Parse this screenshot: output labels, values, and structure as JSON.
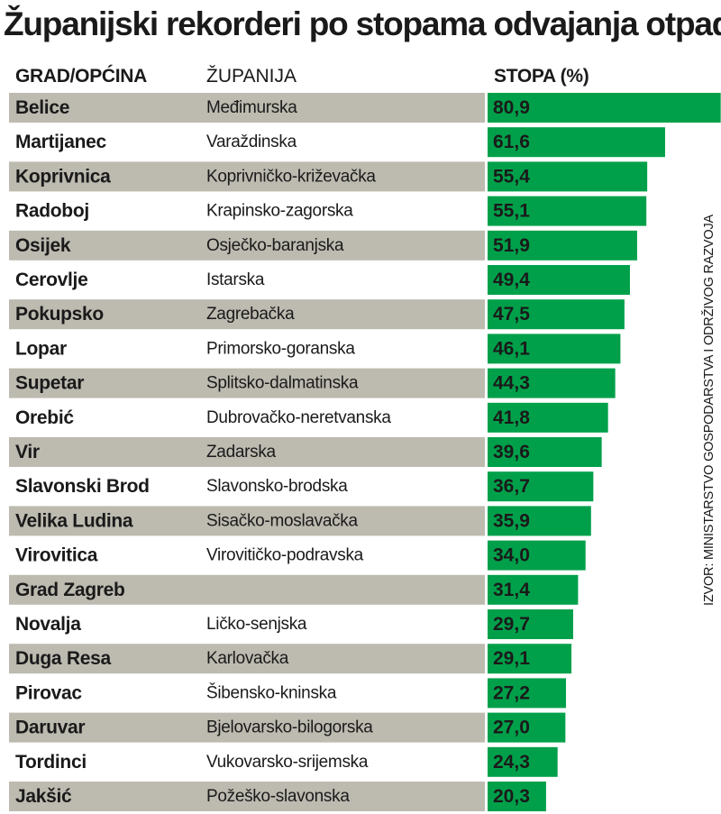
{
  "title": "Županijski rekorderi po stopama odvajanja otpada",
  "headers": {
    "city": "GRAD/OPĆINA",
    "county": "ŽUPANIJA",
    "rate": "STOPA (%)"
  },
  "source": "IZVOR: MINISTARSTVO GOSPODARSTVA I ODRŽIVOG RAZVOJA",
  "colors": {
    "bar": "#00a04a",
    "stripe": "#bdbab0",
    "text": "#1a1a1a"
  },
  "chart_data": {
    "type": "bar",
    "orientation": "horizontal",
    "title": "Županijski rekorderi po stopama odvajanja otpada",
    "categories": [
      "Belice",
      "Martijanec",
      "Koprivnica",
      "Radoboj",
      "Osijek",
      "Cerovlje",
      "Pokupsko",
      "Lopar",
      "Supetar",
      "Orebić",
      "Vir",
      "Slavonski  Brod",
      "Velika Ludina",
      "Virovitica",
      "Grad Zagreb",
      "Novalja",
      "Duga Resa",
      "Pirovac",
      "Daruvar",
      "Tordinci",
      "Jakšić"
    ],
    "counties": [
      "Međimurska",
      "Varaždinska",
      "Koprivničko-križevačka",
      "Krapinsko-zagorska",
      "Osječko-baranjska",
      "Istarska",
      "Zagrebačka",
      "Primorsko-goranska",
      "Splitsko-dalmatinska",
      "Dubrovačko-neretvanska",
      "Zadarska",
      "Slavonsko-brodska",
      "Sisačko-moslavačka",
      "Virovitičko-podravska",
      "",
      "Ličko-senjska",
      "Karlovačka",
      "Šibensko-kninska",
      "Bjelovarsko-bilogorska",
      "Vukovarsko-srijemska",
      "Požeško-slavonska"
    ],
    "values": [
      80.9,
      61.6,
      55.4,
      55.1,
      51.9,
      49.4,
      47.5,
      46.1,
      44.3,
      41.8,
      39.6,
      36.7,
      35.9,
      34.0,
      31.4,
      29.7,
      29.1,
      27.2,
      27.0,
      24.3,
      20.3
    ],
    "value_labels": [
      "80,9",
      "61,6",
      "55,4",
      "55,1",
      "51,9",
      "49,4",
      "47,5",
      "46,1",
      "44,3",
      "41,8",
      "39,6",
      "36,7",
      "35,9",
      "34,0",
      "31,4",
      "29,7",
      "29,1",
      "27,2",
      "27,0",
      "24,3",
      "20,3"
    ],
    "xlabel": "",
    "ylabel": "",
    "xlim": [
      0,
      81
    ]
  }
}
